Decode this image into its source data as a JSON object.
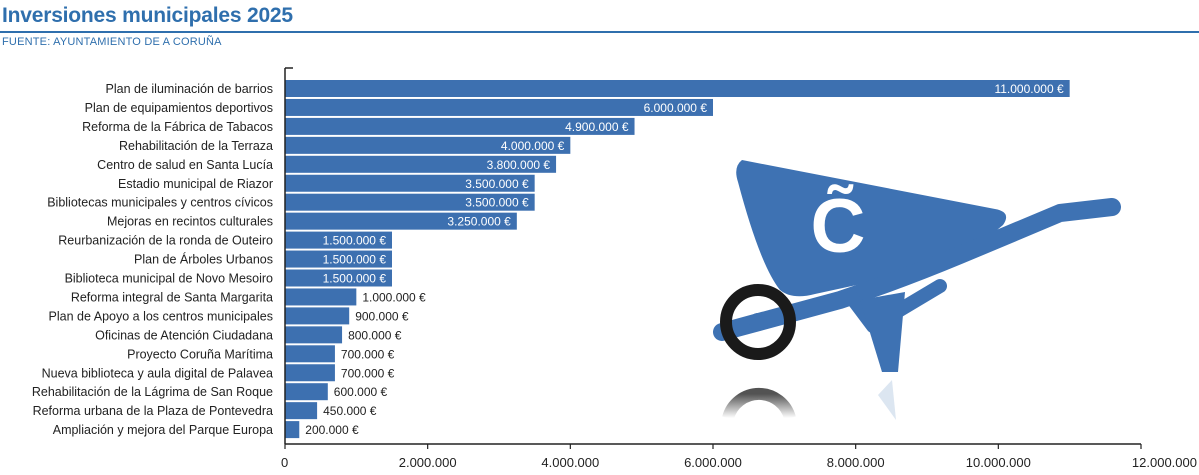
{
  "header": {
    "title": "Inversiones municipales 2025",
    "source": "FUENTE: AYUNTAMIENTO DE A CORUÑA"
  },
  "colors": {
    "accent": "#2f6fad",
    "bar": "#3d70b0",
    "wheelbarrow": "#3e72b3",
    "wheel": "#1a1a1a"
  },
  "decoration": {
    "icon": "wheelbarrow-icon",
    "logo_text": "C̃"
  },
  "chart_data": {
    "type": "bar",
    "orientation": "horizontal",
    "title": "Inversiones municipales 2025",
    "xlim": [
      0,
      12000000
    ],
    "grid": false,
    "x_ticks": [
      0,
      2000000,
      4000000,
      6000000,
      8000000,
      10000000,
      12000000
    ],
    "x_tick_labels": [
      "0",
      "2.000.000",
      "4.000.000",
      "6.000.000",
      "8.000.000",
      "10.000.000",
      "12.000.000"
    ],
    "categories": [
      "Plan de iluminación de barrios",
      "Plan de equipamientos deportivos",
      "Reforma de la Fábrica de Tabacos",
      "Rehabilitación de la Terraza",
      "Centro de salud en Santa Lucía",
      "Estadio municipal de Riazor",
      "Bibliotecas municipales y centros cívicos",
      "Mejoras en recintos culturales",
      "Reurbanización de la ronda de Outeiro",
      "Plan de Árboles Urbanos",
      "Biblioteca municipal de Novo Mesoiro",
      "Reforma integral de Santa Margarita",
      "Plan de Apoyo a los centros municipales",
      "Oficinas de Atención Ciudadana",
      "Proyecto Coruña Marítima",
      "Nueva biblioteca y aula digital de Palavea",
      "Rehabilitación de la Lágrima de San Roque",
      "Reforma urbana de la Plaza de Pontevedra",
      "Ampliación y mejora del Parque Europa"
    ],
    "values": [
      11000000,
      6000000,
      4900000,
      4000000,
      3800000,
      3500000,
      3500000,
      3250000,
      1500000,
      1500000,
      1500000,
      1000000,
      900000,
      800000,
      700000,
      700000,
      600000,
      450000,
      200000
    ],
    "value_labels": [
      "11.000.000 €",
      "6.000.000 €",
      "4.900.000 €",
      "4.000.000 €",
      "3.800.000 €",
      "3.500.000 €",
      "3.500.000 €",
      "3.250.000 €",
      "1.500.000 €",
      "1.500.000 €",
      "1.500.000 €",
      "1.000.000 €",
      "900.000 €",
      "800.000 €",
      "700.000 €",
      "700.000 €",
      "600.000 €",
      "450.000 €",
      "200.000 €"
    ]
  }
}
